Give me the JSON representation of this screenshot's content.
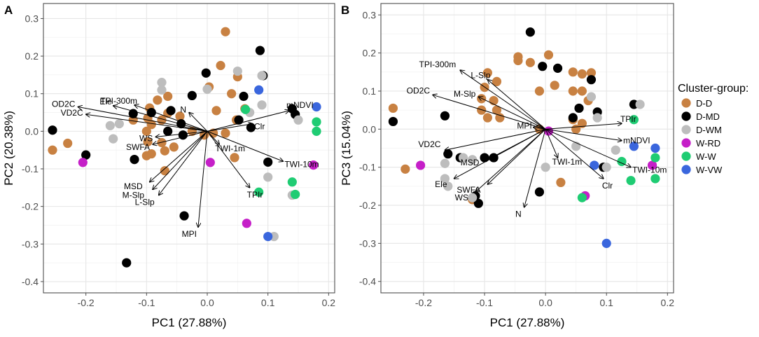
{
  "chart_data": [
    {
      "type": "scatter",
      "panel": "A",
      "xlabel": "PC1 (27.88%)",
      "ylabel": "PC2 (20.38%)",
      "xlim": [
        -0.27,
        0.21
      ],
      "ylim": [
        -0.43,
        0.34
      ],
      "xticks": [
        -0.2,
        -0.1,
        0.0,
        0.1,
        0.2
      ],
      "xtick_labels": [
        "-0.2",
        "-0.1",
        "0.0",
        "0.1",
        "0.2"
      ],
      "yticks": [
        -0.4,
        -0.3,
        -0.2,
        -0.1,
        0.0,
        0.1,
        0.2,
        0.3
      ],
      "ytick_labels": [
        "-0.4",
        "-0.3",
        "-0.2",
        "-0.1",
        "0.0",
        "0.1",
        "0.2",
        "0.3"
      ],
      "loadings": [
        {
          "label": "OD2C",
          "x": -0.213,
          "y": 0.065
        },
        {
          "label": "VD2C",
          "x": -0.2,
          "y": 0.045
        },
        {
          "label": "Ele",
          "x": -0.155,
          "y": 0.068
        },
        {
          "label": "TPI-300m",
          "x": -0.12,
          "y": 0.07
        },
        {
          "label": "N",
          "x": -0.03,
          "y": 0.05
        },
        {
          "label": "mNDVI",
          "x": 0.135,
          "y": 0.055
        },
        {
          "label": "Clr",
          "x": 0.075,
          "y": 0.02
        },
        {
          "label": "WS",
          "x": -0.085,
          "y": -0.015
        },
        {
          "label": "SWFA",
          "x": -0.09,
          "y": -0.035
        },
        {
          "label": "TWI-1m",
          "x": 0.02,
          "y": -0.035
        },
        {
          "label": "TWI-10m",
          "x": 0.125,
          "y": -0.08
        },
        {
          "label": "TPIr",
          "x": 0.07,
          "y": -0.15
        },
        {
          "label": "MSD",
          "x": -0.095,
          "y": -0.135
        },
        {
          "label": "M-Slp",
          "x": -0.09,
          "y": -0.155
        },
        {
          "label": "L-Slp",
          "x": -0.08,
          "y": -0.17
        },
        {
          "label": "MPI",
          "x": -0.015,
          "y": -0.255
        }
      ],
      "points": [
        {
          "g": "D-D",
          "x": 0.03,
          "y": 0.265
        },
        {
          "g": "D-D",
          "x": 0.022,
          "y": 0.175
        },
        {
          "g": "D-D",
          "x": 0.05,
          "y": 0.145
        },
        {
          "g": "D-D",
          "x": 0.003,
          "y": 0.118
        },
        {
          "g": "D-D",
          "x": 0.04,
          "y": 0.1
        },
        {
          "g": "D-D",
          "x": -0.065,
          "y": 0.093
        },
        {
          "g": "D-D",
          "x": -0.082,
          "y": 0.083
        },
        {
          "g": "D-D",
          "x": -0.095,
          "y": 0.062
        },
        {
          "g": "D-D",
          "x": -0.098,
          "y": 0.035
        },
        {
          "g": "D-D",
          "x": -0.122,
          "y": 0.03
        },
        {
          "g": "D-D",
          "x": -0.092,
          "y": 0.018
        },
        {
          "g": "D-D",
          "x": -0.075,
          "y": 0.03
        },
        {
          "g": "D-D",
          "x": -0.065,
          "y": 0.048
        },
        {
          "g": "D-D",
          "x": -0.045,
          "y": 0.04
        },
        {
          "g": "D-D",
          "x": 0.015,
          "y": 0.055
        },
        {
          "g": "D-D",
          "x": 0.062,
          "y": 0.06
        },
        {
          "g": "D-D",
          "x": 0.048,
          "y": 0.03
        },
        {
          "g": "D-D",
          "x": 0.03,
          "y": -0.005
        },
        {
          "g": "D-D",
          "x": -0.1,
          "y": 0.0
        },
        {
          "g": "D-D",
          "x": -0.075,
          "y": -0.03
        },
        {
          "g": "D-D",
          "x": -0.098,
          "y": -0.028
        },
        {
          "g": "D-D",
          "x": -0.1,
          "y": -0.065
        },
        {
          "g": "D-D",
          "x": -0.092,
          "y": -0.06
        },
        {
          "g": "D-D",
          "x": -0.07,
          "y": -0.052
        },
        {
          "g": "D-D",
          "x": -0.055,
          "y": -0.042
        },
        {
          "g": "D-D",
          "x": -0.07,
          "y": -0.105
        },
        {
          "g": "D-D",
          "x": -0.025,
          "y": 0.0
        },
        {
          "g": "D-D",
          "x": -0.005,
          "y": -0.01
        },
        {
          "g": "D-D",
          "x": 0.01,
          "y": -0.005
        },
        {
          "g": "D-D",
          "x": -0.255,
          "y": -0.05
        },
        {
          "g": "D-D",
          "x": -0.23,
          "y": -0.032
        },
        {
          "g": "D-D",
          "x": 0.045,
          "y": -0.07
        },
        {
          "g": "D-MD",
          "x": 0.087,
          "y": 0.215
        },
        {
          "g": "D-MD",
          "x": -0.002,
          "y": 0.155
        },
        {
          "g": "D-MD",
          "x": 0.06,
          "y": 0.093
        },
        {
          "g": "D-MD",
          "x": 0.092,
          "y": 0.148
        },
        {
          "g": "D-MD",
          "x": -0.025,
          "y": 0.095
        },
        {
          "g": "D-MD",
          "x": -0.06,
          "y": 0.055
        },
        {
          "g": "D-MD",
          "x": -0.092,
          "y": 0.05
        },
        {
          "g": "D-MD",
          "x": -0.122,
          "y": 0.047
        },
        {
          "g": "D-MD",
          "x": -0.043,
          "y": 0.02
        },
        {
          "g": "D-MD",
          "x": -0.065,
          "y": 0.0
        },
        {
          "g": "D-MD",
          "x": -0.04,
          "y": -0.01
        },
        {
          "g": "D-MD",
          "x": 0.052,
          "y": 0.03
        },
        {
          "g": "D-MD",
          "x": 0.072,
          "y": 0.01
        },
        {
          "g": "D-MD",
          "x": 0.14,
          "y": 0.06
        },
        {
          "g": "D-MD",
          "x": 0.145,
          "y": 0.045
        },
        {
          "g": "D-MD",
          "x": -0.255,
          "y": 0.003
        },
        {
          "g": "D-MD",
          "x": -0.2,
          "y": -0.063
        },
        {
          "g": "D-MD",
          "x": -0.038,
          "y": -0.225
        },
        {
          "g": "D-MD",
          "x": -0.133,
          "y": -0.35
        },
        {
          "g": "D-MD",
          "x": 0.1,
          "y": -0.082
        },
        {
          "g": "D-MD",
          "x": -0.12,
          "y": -0.075
        },
        {
          "g": "D-WM",
          "x": 0.05,
          "y": 0.16
        },
        {
          "g": "D-WM",
          "x": 0.09,
          "y": 0.07
        },
        {
          "g": "D-WM",
          "x": 0.09,
          "y": 0.148
        },
        {
          "g": "D-WM",
          "x": -0.075,
          "y": 0.13
        },
        {
          "g": "D-WM",
          "x": -0.075,
          "y": 0.11
        },
        {
          "g": "D-WM",
          "x": 0.0,
          "y": 0.112
        },
        {
          "g": "D-WM",
          "x": -0.16,
          "y": 0.015
        },
        {
          "g": "D-WM",
          "x": -0.155,
          "y": -0.02
        },
        {
          "g": "D-WM",
          "x": -0.145,
          "y": 0.02
        },
        {
          "g": "D-WM",
          "x": 0.1,
          "y": -0.122
        },
        {
          "g": "D-WM",
          "x": 0.14,
          "y": -0.17
        },
        {
          "g": "D-WM",
          "x": 0.11,
          "y": -0.28
        },
        {
          "g": "D-WM",
          "x": 0.15,
          "y": 0.03
        },
        {
          "g": "D-WM",
          "x": 0.07,
          "y": 0.05
        },
        {
          "g": "W-RD",
          "x": -0.205,
          "y": -0.083
        },
        {
          "g": "W-RD",
          "x": 0.005,
          "y": -0.083
        },
        {
          "g": "W-RD",
          "x": 0.175,
          "y": -0.09
        },
        {
          "g": "W-RD",
          "x": 0.065,
          "y": -0.245
        },
        {
          "g": "W-W",
          "x": 0.063,
          "y": 0.058
        },
        {
          "g": "W-W",
          "x": 0.18,
          "y": 0.025
        },
        {
          "g": "W-W",
          "x": 0.18,
          "y": 0.0
        },
        {
          "g": "W-W",
          "x": 0.14,
          "y": -0.135
        },
        {
          "g": "W-W",
          "x": 0.085,
          "y": -0.162
        },
        {
          "g": "W-W",
          "x": 0.145,
          "y": -0.168
        },
        {
          "g": "W-VW",
          "x": 0.085,
          "y": 0.11
        },
        {
          "g": "W-VW",
          "x": 0.18,
          "y": 0.065
        },
        {
          "g": "W-VW",
          "x": 0.1,
          "y": -0.28
        }
      ]
    },
    {
      "type": "scatter",
      "panel": "B",
      "xlabel": "PC1 (27.88%)",
      "ylabel": "PC3 (15.04%)",
      "xlim": [
        -0.27,
        0.21
      ],
      "ylim": [
        -0.43,
        0.33
      ],
      "xticks": [
        -0.2,
        -0.1,
        0.0,
        0.1,
        0.2
      ],
      "xtick_labels": [
        "-0.2",
        "-0.1",
        "0.0",
        "0.1",
        "0.2"
      ],
      "yticks": [
        -0.4,
        -0.3,
        -0.2,
        -0.1,
        0.0,
        0.1,
        0.2,
        0.3
      ],
      "ytick_labels": [
        "-0.4",
        "-0.3",
        "-0.2",
        "-0.1",
        "0.0",
        "0.1",
        "0.2",
        "0.3"
      ],
      "loadings": [
        {
          "label": "TPI-300m",
          "x": -0.14,
          "y": 0.155
        },
        {
          "label": "L-Slp",
          "x": -0.095,
          "y": 0.13
        },
        {
          "label": "OD2C",
          "x": -0.185,
          "y": 0.09
        },
        {
          "label": "M-Slp",
          "x": -0.11,
          "y": 0.085
        },
        {
          "label": "MPI",
          "x": -0.02,
          "y": 0.005
        },
        {
          "label": "TPIr",
          "x": 0.125,
          "y": 0.015
        },
        {
          "label": "mNDVI",
          "x": 0.125,
          "y": -0.03
        },
        {
          "label": "TWI-1m",
          "x": 0.02,
          "y": -0.075
        },
        {
          "label": "TWI-10m",
          "x": 0.14,
          "y": -0.1
        },
        {
          "label": "Clr",
          "x": 0.095,
          "y": -0.13
        },
        {
          "label": "VD2C",
          "x": -0.165,
          "y": -0.055
        },
        {
          "label": "MSD",
          "x": -0.095,
          "y": -0.08
        },
        {
          "label": "Ele",
          "x": -0.15,
          "y": -0.13
        },
        {
          "label": "SWFA",
          "x": -0.095,
          "y": -0.145
        },
        {
          "label": "WS",
          "x": -0.115,
          "y": -0.165
        },
        {
          "label": "N",
          "x": -0.035,
          "y": -0.205
        }
      ],
      "points": [
        {
          "g": "D-D",
          "x": -0.045,
          "y": 0.19
        },
        {
          "g": "D-D",
          "x": 0.005,
          "y": 0.195
        },
        {
          "g": "D-D",
          "x": -0.045,
          "y": 0.18
        },
        {
          "g": "D-D",
          "x": -0.025,
          "y": 0.175
        },
        {
          "g": "D-D",
          "x": 0.045,
          "y": 0.15
        },
        {
          "g": "D-D",
          "x": 0.06,
          "y": 0.145
        },
        {
          "g": "D-D",
          "x": 0.075,
          "y": 0.148
        },
        {
          "g": "D-D",
          "x": -0.095,
          "y": 0.148
        },
        {
          "g": "D-D",
          "x": -0.08,
          "y": 0.125
        },
        {
          "g": "D-D",
          "x": -0.1,
          "y": 0.11
        },
        {
          "g": "D-D",
          "x": 0.015,
          "y": 0.115
        },
        {
          "g": "D-D",
          "x": 0.045,
          "y": 0.1
        },
        {
          "g": "D-D",
          "x": 0.06,
          "y": 0.1
        },
        {
          "g": "D-D",
          "x": -0.01,
          "y": 0.1
        },
        {
          "g": "D-D",
          "x": -0.105,
          "y": 0.08
        },
        {
          "g": "D-D",
          "x": -0.085,
          "y": 0.075
        },
        {
          "g": "D-D",
          "x": -0.105,
          "y": 0.05
        },
        {
          "g": "D-D",
          "x": -0.08,
          "y": 0.05
        },
        {
          "g": "D-D",
          "x": -0.095,
          "y": 0.03
        },
        {
          "g": "D-D",
          "x": -0.075,
          "y": 0.03
        },
        {
          "g": "D-D",
          "x": 0.045,
          "y": 0.025
        },
        {
          "g": "D-D",
          "x": 0.05,
          "y": 0.0
        },
        {
          "g": "D-D",
          "x": 0.06,
          "y": 0.015
        },
        {
          "g": "D-D",
          "x": 0.07,
          "y": 0.075
        },
        {
          "g": "D-D",
          "x": -0.01,
          "y": 0.0
        },
        {
          "g": "D-D",
          "x": -0.25,
          "y": 0.055
        },
        {
          "g": "D-D",
          "x": -0.23,
          "y": -0.105
        },
        {
          "g": "D-D",
          "x": 0.025,
          "y": -0.14
        },
        {
          "g": "D-D",
          "x": -0.12,
          "y": -0.185
        },
        {
          "g": "D-MD",
          "x": -0.025,
          "y": 0.255
        },
        {
          "g": "D-MD",
          "x": -0.005,
          "y": 0.165
        },
        {
          "g": "D-MD",
          "x": 0.075,
          "y": 0.13
        },
        {
          "g": "D-MD",
          "x": 0.02,
          "y": 0.16
        },
        {
          "g": "D-MD",
          "x": 0.055,
          "y": 0.055
        },
        {
          "g": "D-MD",
          "x": 0.045,
          "y": 0.03
        },
        {
          "g": "D-MD",
          "x": 0.085,
          "y": 0.045
        },
        {
          "g": "D-MD",
          "x": 0.145,
          "y": 0.065
        },
        {
          "g": "D-MD",
          "x": -0.25,
          "y": 0.02
        },
        {
          "g": "D-MD",
          "x": -0.165,
          "y": 0.035
        },
        {
          "g": "D-MD",
          "x": -0.16,
          "y": -0.065
        },
        {
          "g": "D-MD",
          "x": -0.14,
          "y": -0.075
        },
        {
          "g": "D-MD",
          "x": -0.1,
          "y": -0.075
        },
        {
          "g": "D-MD",
          "x": -0.085,
          "y": -0.075
        },
        {
          "g": "D-MD",
          "x": -0.115,
          "y": -0.175
        },
        {
          "g": "D-MD",
          "x": -0.11,
          "y": -0.195
        },
        {
          "g": "D-MD",
          "x": -0.01,
          "y": -0.165
        },
        {
          "g": "D-MD",
          "x": 0.095,
          "y": -0.1
        },
        {
          "g": "D-WM",
          "x": 0.075,
          "y": 0.085
        },
        {
          "g": "D-WM",
          "x": 0.085,
          "y": 0.03
        },
        {
          "g": "D-WM",
          "x": 0.155,
          "y": 0.065
        },
        {
          "g": "D-WM",
          "x": -0.165,
          "y": -0.13
        },
        {
          "g": "D-WM",
          "x": -0.16,
          "y": -0.15
        },
        {
          "g": "D-WM",
          "x": -0.12,
          "y": -0.08
        },
        {
          "g": "D-WM",
          "x": -0.165,
          "y": -0.09
        },
        {
          "g": "D-WM",
          "x": -0.135,
          "y": -0.075
        },
        {
          "g": "D-WM",
          "x": 0.0,
          "y": -0.1
        },
        {
          "g": "D-WM",
          "x": 0.05,
          "y": -0.045
        },
        {
          "g": "D-WM",
          "x": 0.1,
          "y": -0.1
        },
        {
          "g": "D-WM",
          "x": 0.115,
          "y": -0.055
        },
        {
          "g": "D-WM",
          "x": -0.12,
          "y": -0.18
        },
        {
          "g": "W-RD",
          "x": -0.205,
          "y": -0.095
        },
        {
          "g": "W-RD",
          "x": 0.005,
          "y": -0.005
        },
        {
          "g": "W-RD",
          "x": 0.175,
          "y": -0.095
        },
        {
          "g": "W-RD",
          "x": 0.065,
          "y": -0.175
        },
        {
          "g": "W-W",
          "x": 0.145,
          "y": 0.025
        },
        {
          "g": "W-W",
          "x": 0.125,
          "y": -0.085
        },
        {
          "g": "W-W",
          "x": 0.18,
          "y": -0.075
        },
        {
          "g": "W-W",
          "x": 0.18,
          "y": -0.13
        },
        {
          "g": "W-W",
          "x": 0.14,
          "y": -0.135
        },
        {
          "g": "W-W",
          "x": 0.06,
          "y": -0.18
        },
        {
          "g": "W-VW",
          "x": 0.145,
          "y": -0.045
        },
        {
          "g": "W-VW",
          "x": 0.18,
          "y": -0.05
        },
        {
          "g": "W-VW",
          "x": 0.08,
          "y": -0.095
        },
        {
          "g": "W-VW",
          "x": 0.1,
          "y": -0.3
        }
      ]
    }
  ],
  "legend": {
    "title": "Cluster-group:",
    "placement": "right",
    "items": [
      {
        "key": "D-D",
        "label": "D-D",
        "color": "#c88142"
      },
      {
        "key": "D-MD",
        "label": "D-MD",
        "color": "#000000"
      },
      {
        "key": "D-WM",
        "label": "D-WM",
        "color": "#bdbdbd"
      },
      {
        "key": "W-RD",
        "label": "W-RD",
        "color": "#c51fc8"
      },
      {
        "key": "W-W",
        "label": "W-W",
        "color": "#1fcc73"
      },
      {
        "key": "W-VW",
        "label": "W-VW",
        "color": "#3a66dd"
      }
    ]
  },
  "colors": {
    "panel_bg": "#ffffff",
    "grid_major": "#e6e6e6",
    "grid_minor": "#f2f2f2",
    "frame": "#4d4d4d",
    "arrow": "#000000"
  }
}
